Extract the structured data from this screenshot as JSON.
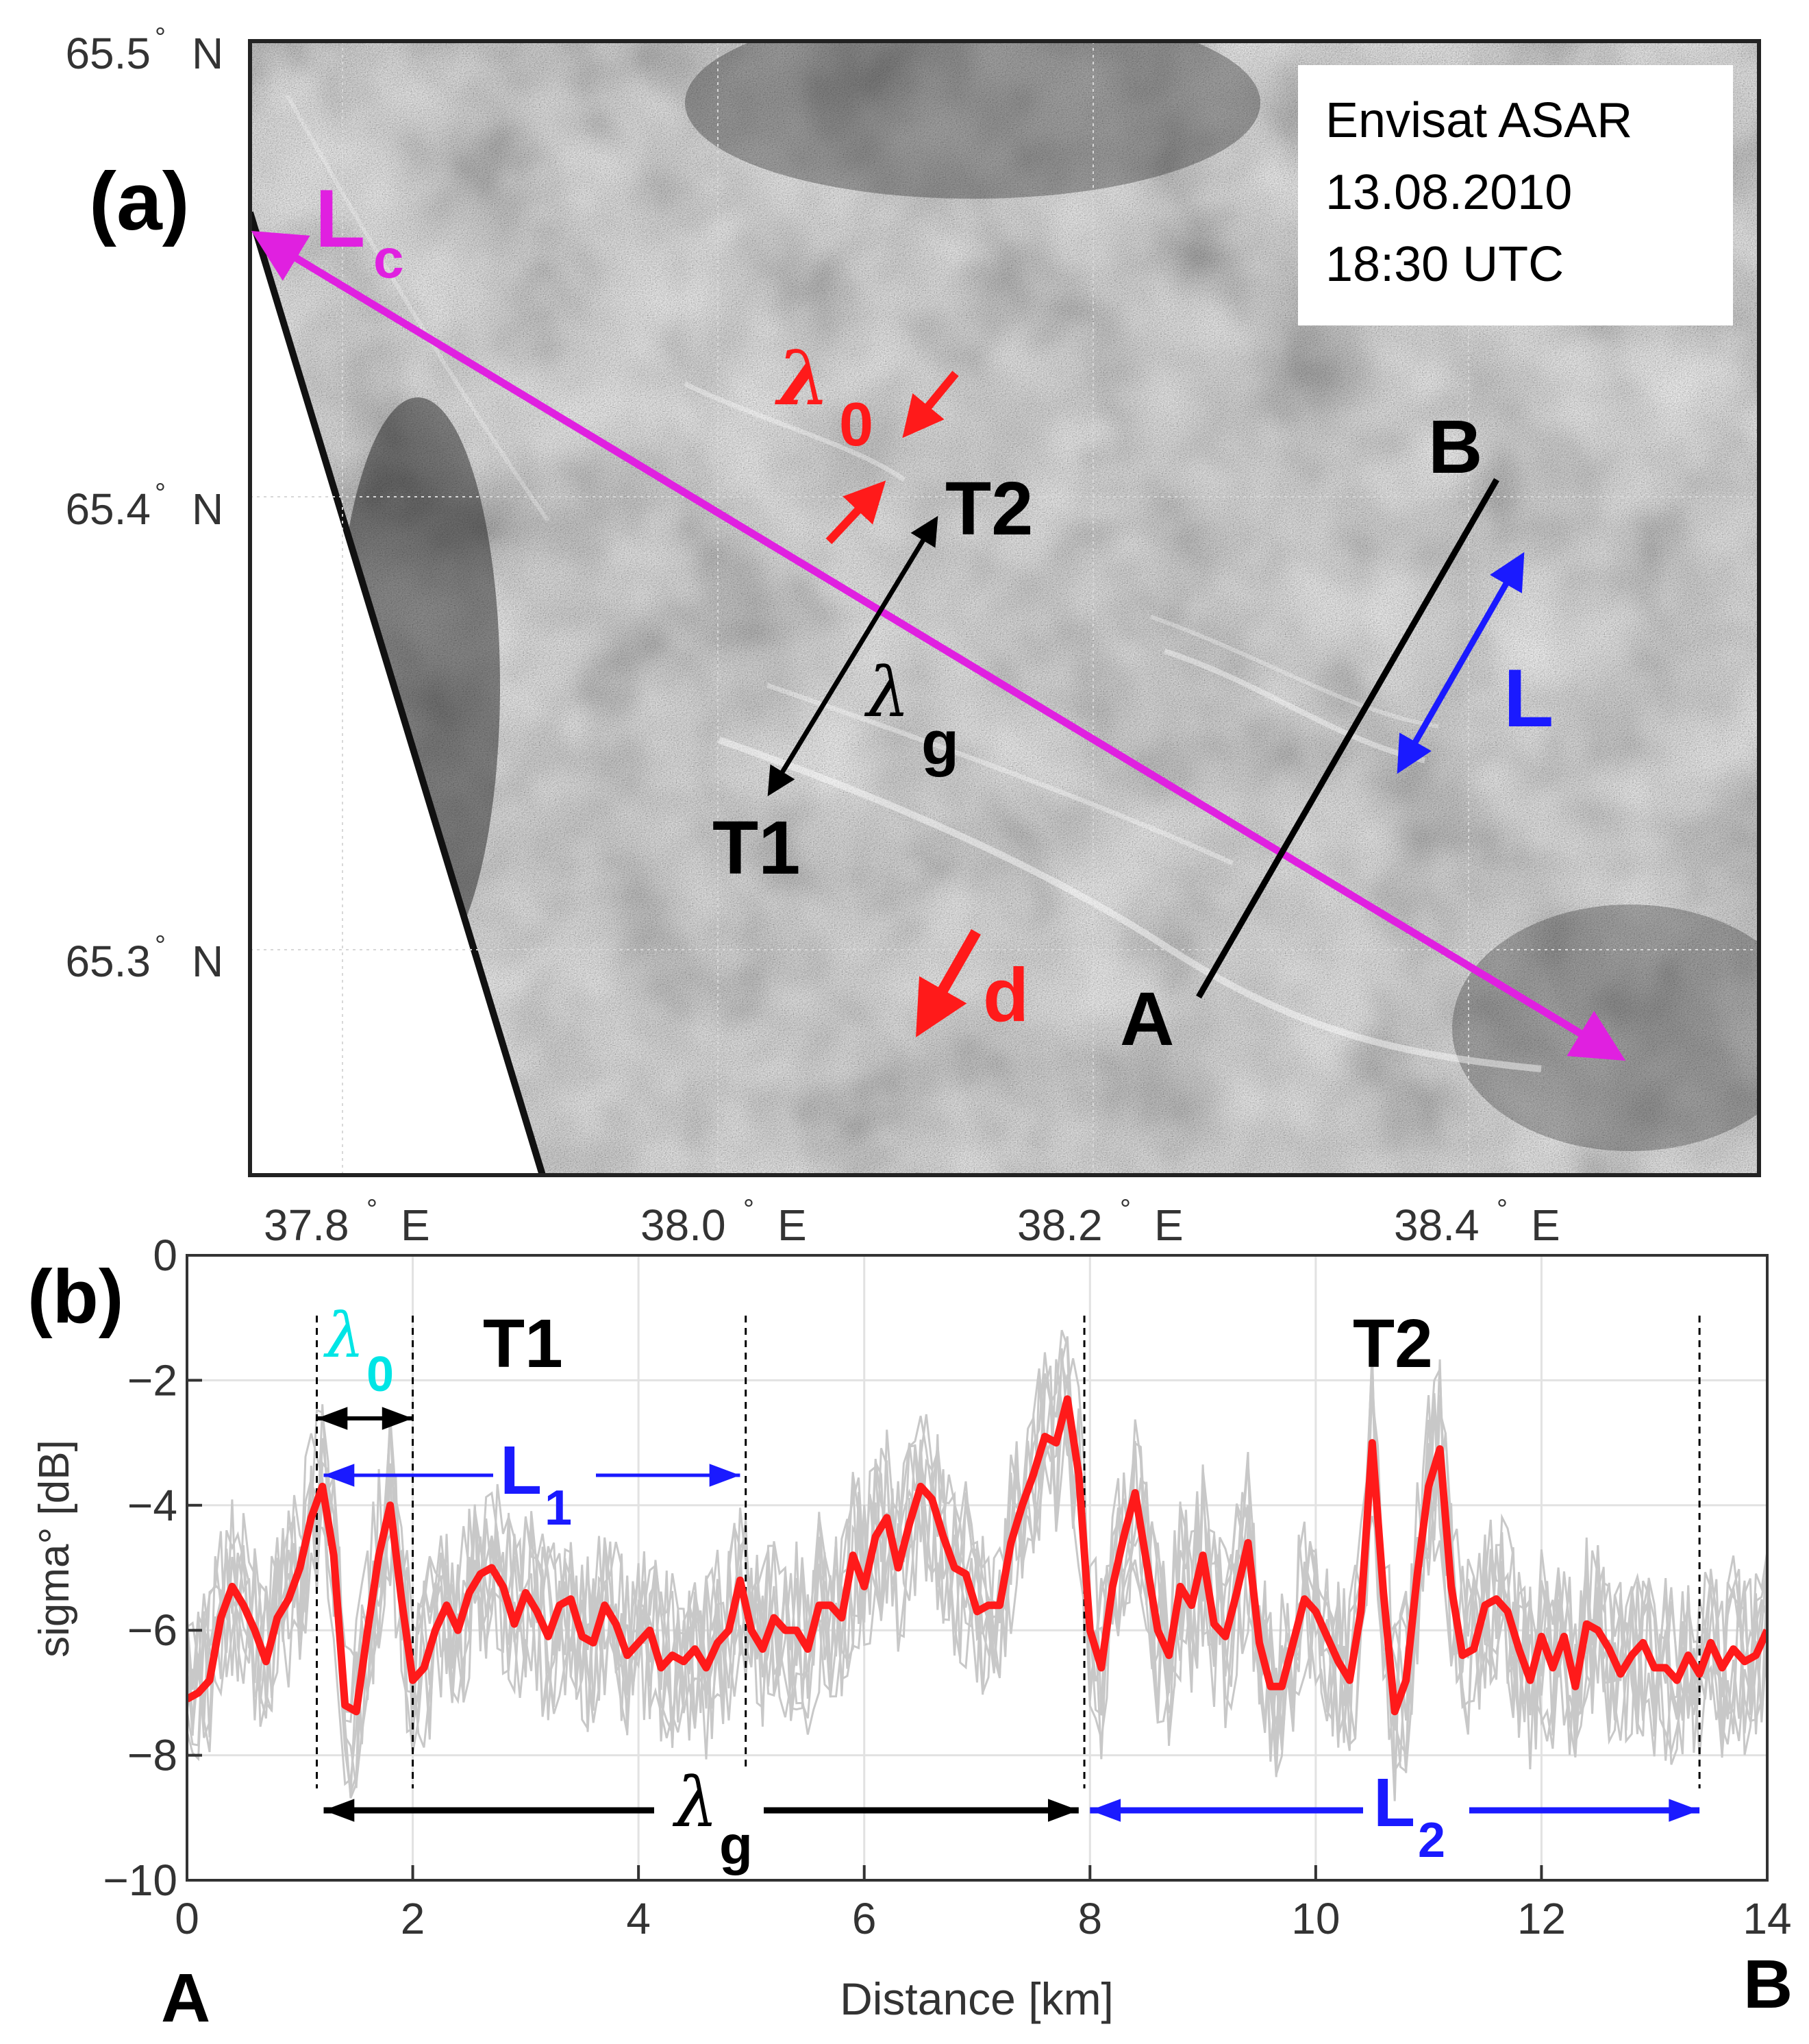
{
  "panel_a": {
    "label": "(a)",
    "info_box": {
      "line1": "Envisat ASAR",
      "line2": "13.08.2010",
      "line3": "18:30 UTC"
    },
    "lat_ticks": [
      {
        "value": 65.5,
        "deg": "65.5",
        "unit": "N"
      },
      {
        "value": 65.4,
        "deg": "65.4",
        "unit": "N"
      },
      {
        "value": 65.3,
        "deg": "65.3",
        "unit": "N"
      }
    ],
    "lon_ticks": [
      {
        "value": 37.8,
        "deg": "37.8",
        "unit": "E"
      },
      {
        "value": 38.0,
        "deg": "38.0",
        "unit": "E"
      },
      {
        "value": 38.2,
        "deg": "38.2",
        "unit": "E"
      },
      {
        "value": 38.4,
        "deg": "38.4",
        "unit": "E"
      }
    ],
    "annotations": {
      "lc_main": "L",
      "lc_sub": "c",
      "lambda0_main": "λ",
      "lambda0_sub": "0",
      "t2": "T2",
      "t1": "T1",
      "lambdag_main": "λ",
      "lambdag_sub": "g",
      "d": "d",
      "a": "A",
      "b": "B",
      "l": "L"
    },
    "colors": {
      "magenta": "#e020e0",
      "red": "#ff1a1a",
      "blue": "#1a1aff",
      "black": "#000000"
    }
  },
  "panel_b": {
    "label": "(b)",
    "end_a": "A",
    "end_b": "B",
    "annotations": {
      "t1": "T1",
      "t2": "T2",
      "lambda0_main": "λ",
      "lambda0_sub": "0",
      "l1_main": "L",
      "l1_sub": "1",
      "l2_main": "L",
      "l2_sub": "2",
      "lambdag_main": "λ",
      "lambdag_sub": "g"
    }
  },
  "chart_data": {
    "type": "line",
    "title": "",
    "xlabel": "Distance [km]",
    "ylabel": "sigma° [dB]",
    "xlim": [
      0,
      14
    ],
    "ylim": [
      -10,
      0
    ],
    "xticks": [
      0,
      2,
      4,
      6,
      8,
      10,
      12,
      14
    ],
    "yticks": [
      0,
      -2,
      -4,
      -6,
      -8,
      -10
    ],
    "ytick_labels": [
      "0",
      "−2",
      "−4",
      "−6",
      "−8",
      "−10"
    ],
    "grid": true,
    "series": [
      {
        "name": "mean profile",
        "color": "#ff1a1a",
        "x": [
          0,
          0.1,
          0.2,
          0.3,
          0.4,
          0.5,
          0.6,
          0.7,
          0.8,
          0.9,
          1.0,
          1.1,
          1.2,
          1.3,
          1.4,
          1.5,
          1.6,
          1.7,
          1.8,
          1.9,
          2.0,
          2.1,
          2.2,
          2.3,
          2.4,
          2.5,
          2.6,
          2.7,
          2.8,
          2.9,
          3.0,
          3.1,
          3.2,
          3.3,
          3.4,
          3.5,
          3.6,
          3.7,
          3.8,
          3.9,
          4.0,
          4.1,
          4.2,
          4.3,
          4.4,
          4.5,
          4.6,
          4.7,
          4.8,
          4.9,
          5.0,
          5.1,
          5.2,
          5.3,
          5.4,
          5.5,
          5.6,
          5.7,
          5.8,
          5.9,
          6.0,
          6.1,
          6.2,
          6.3,
          6.4,
          6.5,
          6.6,
          6.7,
          6.8,
          6.9,
          7.0,
          7.1,
          7.2,
          7.3,
          7.4,
          7.5,
          7.6,
          7.7,
          7.8,
          7.9,
          8.0,
          8.1,
          8.2,
          8.3,
          8.4,
          8.5,
          8.6,
          8.7,
          8.8,
          8.9,
          9.0,
          9.1,
          9.2,
          9.3,
          9.4,
          9.5,
          9.6,
          9.7,
          9.8,
          9.9,
          10.0,
          10.1,
          10.2,
          10.3,
          10.4,
          10.5,
          10.6,
          10.7,
          10.8,
          10.9,
          11.0,
          11.1,
          11.2,
          11.3,
          11.4,
          11.5,
          11.6,
          11.7,
          11.8,
          11.9,
          12.0,
          12.1,
          12.2,
          12.3,
          12.4,
          12.5,
          12.6,
          12.7,
          12.8,
          12.9,
          13.0,
          13.1,
          13.2,
          13.3,
          13.4,
          13.5,
          13.6,
          13.7,
          13.8,
          13.9,
          14.0
        ],
        "values": [
          -7.1,
          -7.0,
          -6.8,
          -5.8,
          -5.3,
          -5.6,
          -6.0,
          -6.5,
          -5.8,
          -5.5,
          -5.0,
          -4.2,
          -3.7,
          -4.8,
          -7.2,
          -7.3,
          -6.0,
          -4.8,
          -4.0,
          -5.5,
          -6.8,
          -6.6,
          -6.0,
          -5.6,
          -6.0,
          -5.4,
          -5.1,
          -5.0,
          -5.3,
          -5.9,
          -5.4,
          -5.7,
          -6.1,
          -5.6,
          -5.5,
          -6.1,
          -6.2,
          -5.6,
          -5.9,
          -6.4,
          -6.2,
          -6.0,
          -6.6,
          -6.4,
          -6.5,
          -6.3,
          -6.6,
          -6.2,
          -6.0,
          -5.2,
          -6.0,
          -6.3,
          -5.8,
          -6.0,
          -6.0,
          -6.3,
          -5.6,
          -5.6,
          -5.8,
          -4.8,
          -5.3,
          -4.5,
          -4.2,
          -5.0,
          -4.3,
          -3.7,
          -3.9,
          -4.5,
          -5.0,
          -5.1,
          -5.7,
          -5.6,
          -5.6,
          -4.6,
          -4.0,
          -3.5,
          -2.9,
          -3.0,
          -2.3,
          -3.5,
          -6.0,
          -6.6,
          -5.3,
          -4.5,
          -3.8,
          -4.9,
          -6.0,
          -6.4,
          -5.3,
          -5.6,
          -4.8,
          -5.9,
          -6.1,
          -5.4,
          -4.6,
          -6.2,
          -6.9,
          -6.9,
          -6.2,
          -5.5,
          -5.7,
          -6.1,
          -6.5,
          -6.8,
          -5.7,
          -3.0,
          -5.4,
          -7.3,
          -6.8,
          -5.1,
          -3.7,
          -3.1,
          -5.3,
          -6.4,
          -6.3,
          -5.6,
          -5.5,
          -5.7,
          -6.3,
          -6.8,
          -6.1,
          -6.6,
          -6.1,
          -6.9,
          -5.9,
          -6.0,
          -6.3,
          -6.7,
          -6.4,
          -6.2,
          -6.6,
          -6.6,
          -6.8,
          -6.4,
          -6.7,
          -6.2,
          -6.6,
          -6.3,
          -6.5,
          -6.4,
          -6.0
        ]
      },
      {
        "name": "individual profiles",
        "color": "#c8c8c8",
        "count": 8,
        "note": "noisy grey traces scattered roughly ±1.5 dB around the mean profile"
      }
    ],
    "annotations": [
      {
        "text": "λ0",
        "color": "#00e5e5",
        "from_x": 1.15,
        "to_x": 2.0
      },
      {
        "text": "L1",
        "color": "#1a1aff",
        "from_x": 1.15,
        "to_x": 4.9
      },
      {
        "text": "λg",
        "color": "#000000",
        "from_x": 1.15,
        "to_x": 7.9
      },
      {
        "text": "L2",
        "color": "#1a1aff",
        "from_x": 8.0,
        "to_x": 13.4
      },
      {
        "text": "T1",
        "at_x": 3.0
      },
      {
        "text": "T2",
        "at_x": 10.8
      }
    ],
    "dashed_markers_x": [
      1.15,
      2.0,
      4.95,
      7.95,
      13.4
    ]
  }
}
